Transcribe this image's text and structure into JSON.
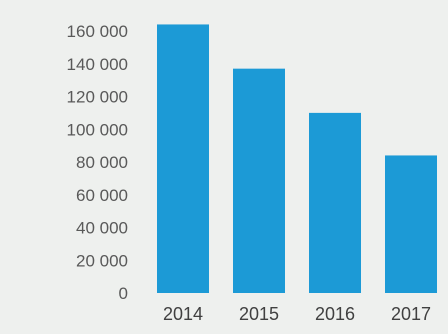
{
  "chart_data": {
    "type": "bar",
    "title": "",
    "xlabel": "",
    "ylabel": "",
    "categories": [
      "2014",
      "2015",
      "2016",
      "2017"
    ],
    "values": [
      164000,
      137000,
      110000,
      84000
    ],
    "ylim": [
      0,
      160000
    ],
    "yticks": [
      0,
      20000,
      40000,
      60000,
      80000,
      100000,
      120000,
      140000,
      160000
    ],
    "ytick_labels": [
      "0",
      "20 000",
      "40 000",
      "60 000",
      "80 000",
      "100 000",
      "120 000",
      "140 000",
      "160 000"
    ],
    "grid": false,
    "legend": "none",
    "bar_color": "#1c9ad6",
    "background_color": "#eef0ee"
  }
}
